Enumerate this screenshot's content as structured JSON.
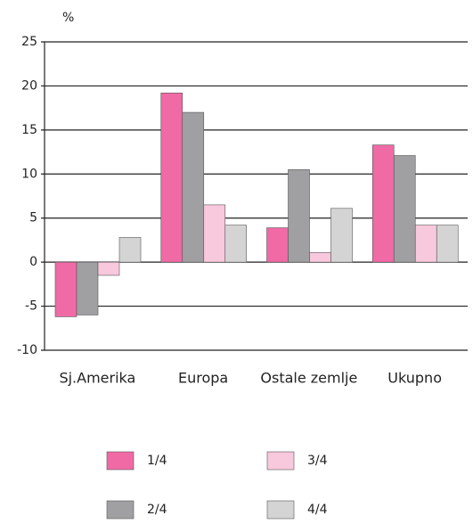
{
  "chart_data": {
    "type": "bar",
    "y_label": "%",
    "categories": [
      "Sj.Amerika",
      "Europa",
      "Ostale zemlje",
      "Ukupno"
    ],
    "series": [
      {
        "name": "1/4",
        "color": "#f06aa5",
        "values": [
          -6.2,
          19.2,
          3.9,
          13.3
        ]
      },
      {
        "name": "2/4",
        "color": "#a0a0a2",
        "values": [
          -6.0,
          17.0,
          10.5,
          12.1
        ]
      },
      {
        "name": "3/4",
        "color": "#f8c8dc",
        "values": [
          -1.5,
          6.5,
          1.1,
          4.2
        ]
      },
      {
        "name": "4/4",
        "color": "#d4d4d4",
        "values": [
          2.8,
          4.2,
          6.1,
          4.2
        ]
      }
    ],
    "ylim": [
      -10,
      25
    ],
    "yticks": [
      -10,
      -5,
      0,
      5,
      10,
      15,
      20,
      25
    ],
    "grid": true
  }
}
